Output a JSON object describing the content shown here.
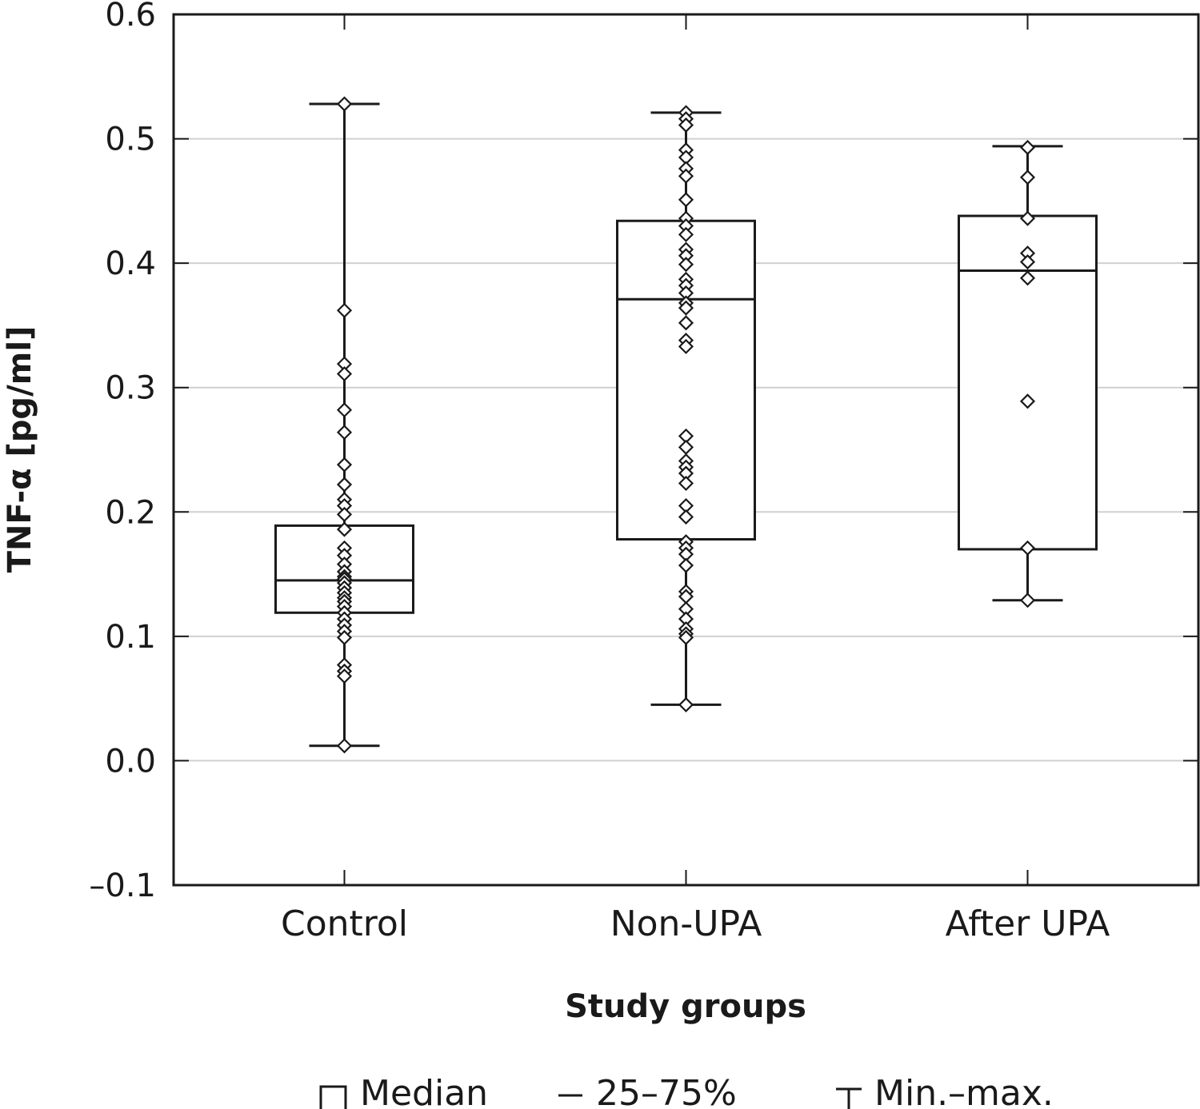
{
  "chart_data": {
    "type": "box",
    "xlabel": "Study groups",
    "ylabel": "TNF-α [pg/ml]",
    "ylim": [
      -0.1,
      0.6
    ],
    "yticks": [
      "0.6",
      "0.5",
      "0.4",
      "0.3",
      "0.2",
      "0.1",
      "0.0",
      "–0.1"
    ],
    "ytick_values": [
      0.6,
      0.5,
      0.4,
      0.3,
      0.2,
      0.1,
      0.0,
      -0.1
    ],
    "grid": "horizontal",
    "legend_position": "bottom",
    "categories": [
      "Control",
      "Non-UPA",
      "After UPA"
    ],
    "groups": [
      {
        "name": "Control",
        "min": 0.012,
        "q1": 0.119,
        "median": 0.145,
        "q3": 0.189,
        "max": 0.528,
        "points": [
          0.528,
          0.362,
          0.319,
          0.311,
          0.282,
          0.264,
          0.238,
          0.222,
          0.21,
          0.205,
          0.198,
          0.186,
          0.171,
          0.165,
          0.158,
          0.152,
          0.148,
          0.146,
          0.143,
          0.139,
          0.135,
          0.131,
          0.128,
          0.124,
          0.119,
          0.114,
          0.109,
          0.104,
          0.099,
          0.077,
          0.072,
          0.068,
          0.012
        ]
      },
      {
        "name": "Non-UPA",
        "min": 0.045,
        "q1": 0.178,
        "median": 0.371,
        "q3": 0.434,
        "max": 0.521,
        "points": [
          0.521,
          0.516,
          0.511,
          0.491,
          0.485,
          0.476,
          0.47,
          0.451,
          0.436,
          0.43,
          0.423,
          0.411,
          0.406,
          0.399,
          0.387,
          0.382,
          0.376,
          0.368,
          0.364,
          0.352,
          0.338,
          0.333,
          0.261,
          0.252,
          0.241,
          0.236,
          0.231,
          0.223,
          0.205,
          0.196,
          0.176,
          0.171,
          0.166,
          0.157,
          0.136,
          0.132,
          0.122,
          0.114,
          0.106,
          0.102,
          0.099,
          0.045
        ]
      },
      {
        "name": "After UPA",
        "min": 0.129,
        "q1": 0.17,
        "median": 0.394,
        "q3": 0.438,
        "max": 0.494,
        "points": [
          0.493,
          0.469,
          0.436,
          0.408,
          0.401,
          0.388,
          0.289,
          0.171,
          0.129
        ]
      }
    ],
    "legend": [
      {
        "symbol": "box",
        "label": "Median"
      },
      {
        "symbol": "line",
        "label": "25–75%"
      },
      {
        "symbol": "whisker",
        "label": "Min.–max."
      }
    ]
  }
}
